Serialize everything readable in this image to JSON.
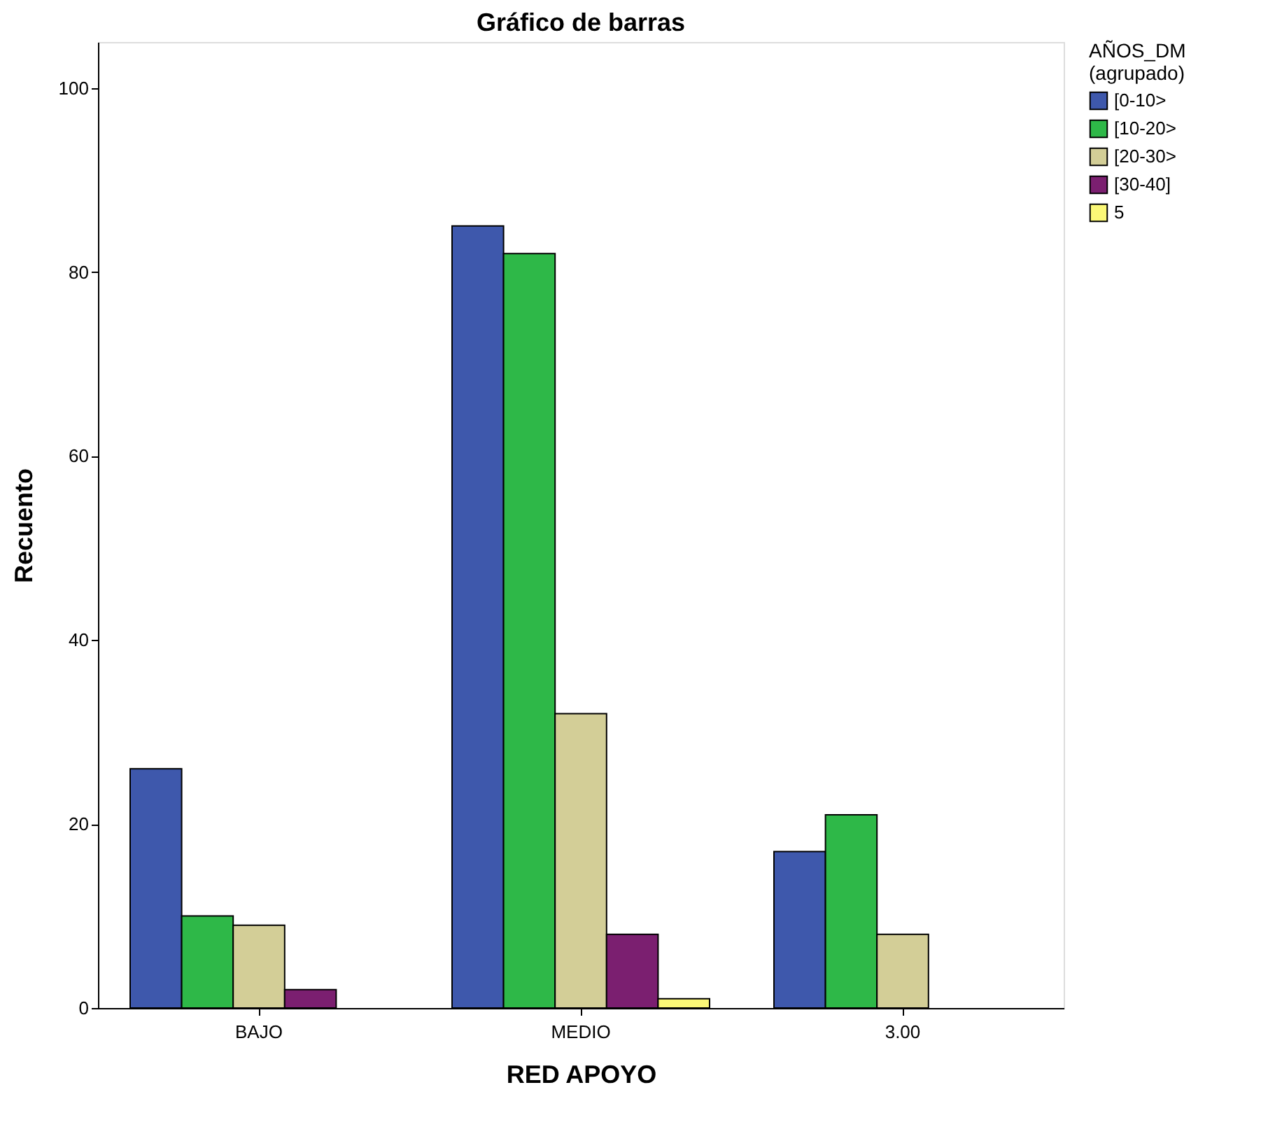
{
  "chart_data": {
    "type": "bar",
    "title": "Gráfico de barras",
    "xlabel": "RED APOYO",
    "ylabel": "Recuento",
    "legend_title": "AÑOS_DM\n(agrupado)",
    "categories": [
      "BAJO",
      "MEDIO",
      "3.00"
    ],
    "series": [
      {
        "name": "[0-10>",
        "color": "#3e58ac",
        "values": [
          26,
          85,
          17
        ]
      },
      {
        "name": "[10-20>",
        "color": "#2eb848",
        "values": [
          10,
          82,
          21
        ]
      },
      {
        "name": "[20-30>",
        "color": "#d3ce97",
        "values": [
          9,
          32,
          8
        ]
      },
      {
        "name": "[30-40]",
        "color": "#7b1f70",
        "values": [
          2,
          8,
          null
        ]
      },
      {
        "name": "5",
        "color": "#fbf877",
        "values": [
          null,
          1,
          null
        ]
      }
    ],
    "ylim": [
      0,
      105
    ],
    "yticks": [
      0,
      20,
      40,
      60,
      80,
      100
    ],
    "grid": false,
    "legend": "top right"
  }
}
